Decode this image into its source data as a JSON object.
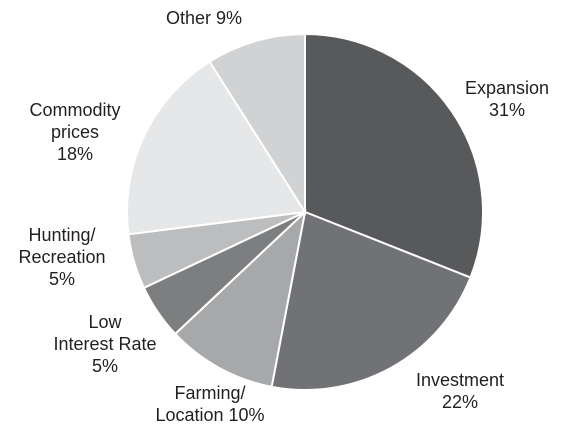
{
  "chart_data": {
    "type": "pie",
    "categories": [
      "Expansion",
      "Investment",
      "Farming/\nLocation",
      "Low\nInterest Rate",
      "Hunting/\nRecreation",
      "Commodity\nprices",
      "Other"
    ],
    "values": [
      31,
      22,
      10,
      5,
      5,
      18,
      9
    ],
    "value_labels": [
      "31%",
      "22%",
      "10%",
      "5%",
      "5%",
      "18%",
      "9%"
    ],
    "colors": [
      "#58595b",
      "#717275",
      "#a7a8aa",
      "#7d7e80",
      "#bcbdbf",
      "#e6e7e8",
      "#d1d2d4"
    ]
  }
}
